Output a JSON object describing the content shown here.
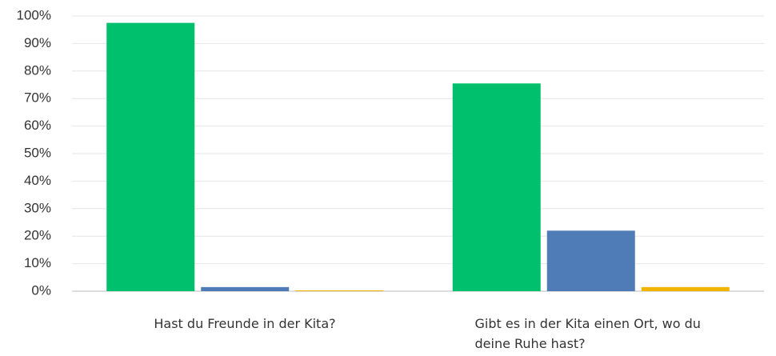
{
  "chart_data": {
    "type": "bar",
    "categories": [
      "Hast du Freunde in der Kita?",
      "Gibt es in der Kita einen Ort, wo du deine Ruhe hast?"
    ],
    "series": [
      {
        "color": "#00c06e",
        "values": [
          97.5,
          75.5
        ]
      },
      {
        "color": "#4f7cb6",
        "values": [
          1.5,
          22
        ]
      },
      {
        "color": "#f0b400",
        "values": [
          0.3,
          1.5
        ]
      }
    ],
    "ylim": [
      0,
      100
    ],
    "yticks": [
      {
        "value": 0,
        "label": "0%"
      },
      {
        "value": 10,
        "label": "10%"
      },
      {
        "value": 20,
        "label": "20%"
      },
      {
        "value": 30,
        "label": "30%"
      },
      {
        "value": 40,
        "label": "40%"
      },
      {
        "value": 50,
        "label": "50%"
      },
      {
        "value": 60,
        "label": "60%"
      },
      {
        "value": 70,
        "label": "70%"
      },
      {
        "value": 80,
        "label": "80%"
      },
      {
        "value": 90,
        "label": "90%"
      },
      {
        "value": 100,
        "label": "100%"
      }
    ],
    "grid": true
  }
}
